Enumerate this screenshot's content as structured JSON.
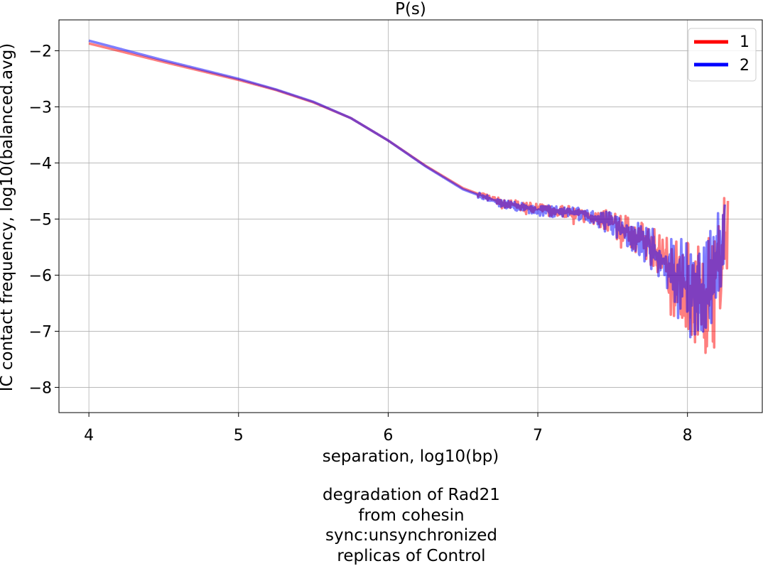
{
  "chart_data": {
    "type": "line",
    "title": "P(s)",
    "xlabel": "separation, log10(bp)",
    "ylabel": "IC contact frequency, log10(balanced.avg)",
    "xlim": [
      3.8,
      8.5
    ],
    "ylim": [
      -8.45,
      -1.45
    ],
    "x_ticks": [
      4,
      5,
      6,
      7,
      8
    ],
    "y_ticks": [
      -2,
      -3,
      -4,
      -5,
      -6,
      -7,
      -8
    ],
    "x_tick_labels": [
      "4",
      "5",
      "6",
      "7",
      "8"
    ],
    "y_tick_labels": [
      "−2",
      "−3",
      "−4",
      "−5",
      "−6",
      "−7",
      "−8"
    ],
    "grid": true,
    "legend_position": "top-right",
    "series": [
      {
        "name": "1",
        "color": "#ff0000",
        "x": [
          4.0,
          4.5,
          5.0,
          5.25,
          5.5,
          5.75,
          6.0,
          6.25,
          6.5,
          6.75,
          7.0,
          7.25,
          7.5,
          7.75,
          7.9,
          8.0,
          8.1,
          8.2,
          8.27
        ],
        "y": [
          -1.87,
          -2.2,
          -2.52,
          -2.7,
          -2.92,
          -3.2,
          -3.6,
          -4.05,
          -4.45,
          -4.7,
          -4.82,
          -4.88,
          -5.05,
          -5.45,
          -5.85,
          -6.2,
          -6.4,
          -6.0,
          -5.1
        ],
        "noise_start": 6.6,
        "noise_amplitude": [
          0.05,
          0.1,
          0.12,
          0.25,
          0.45,
          0.9,
          1.2,
          1.0,
          0.8
        ],
        "noise_amp_x": [
          6.6,
          7.0,
          7.3,
          7.6,
          7.85,
          8.0,
          8.1,
          8.2,
          8.27
        ],
        "min_value": -8.15
      },
      {
        "name": "2",
        "color": "#0000ff",
        "x": [
          4.0,
          4.5,
          5.0,
          5.25,
          5.5,
          5.75,
          6.0,
          6.25,
          6.5,
          6.75,
          7.0,
          7.25,
          7.5,
          7.75,
          7.9,
          8.0,
          8.1,
          8.2,
          8.25
        ],
        "y": [
          -1.82,
          -2.17,
          -2.5,
          -2.69,
          -2.91,
          -3.2,
          -3.6,
          -4.06,
          -4.47,
          -4.72,
          -4.84,
          -4.9,
          -5.08,
          -5.5,
          -5.9,
          -6.2,
          -6.3,
          -5.8,
          -5.4
        ],
        "noise_start": 6.6,
        "noise_amplitude": [
          0.05,
          0.1,
          0.12,
          0.25,
          0.45,
          0.85,
          1.1,
          0.95,
          0.7
        ],
        "noise_amp_x": [
          6.6,
          7.0,
          7.3,
          7.6,
          7.85,
          8.0,
          8.1,
          8.2,
          8.25
        ],
        "min_value": -7.45
      }
    ]
  },
  "caption": {
    "line1": "degradation of Rad21",
    "line2": "from cohesin",
    "line3": "sync:unsynchronized",
    "line4": "replicas of Control"
  }
}
